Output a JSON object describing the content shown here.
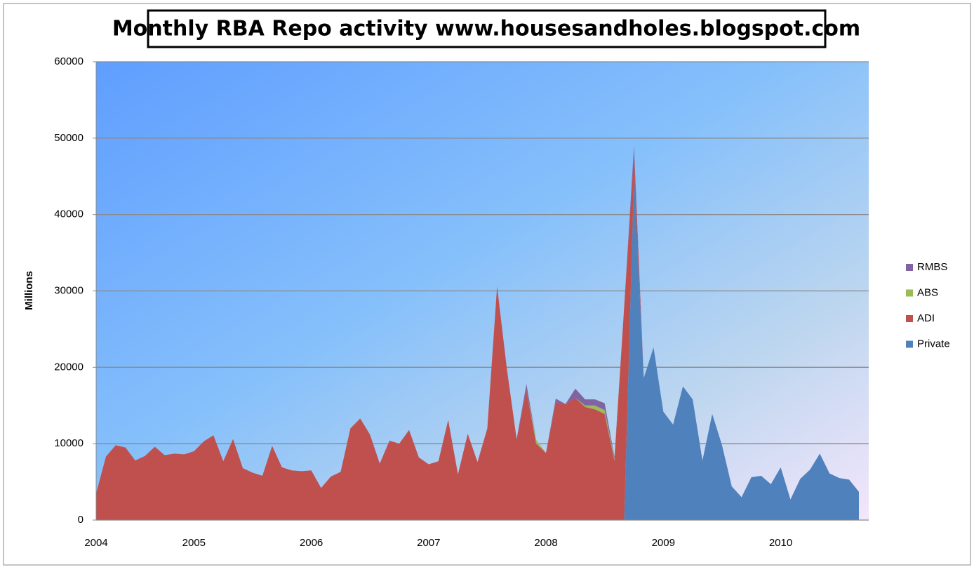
{
  "chart_data": {
    "type": "stacked_area",
    "title": "Monthly RBA Repo activity www.housesandholes.blogspot.com",
    "ylabel": "Millions",
    "categories": [
      "2004",
      null,
      null,
      null,
      null,
      null,
      null,
      null,
      null,
      null,
      "2005",
      null,
      null,
      null,
      null,
      null,
      null,
      null,
      null,
      null,
      null,
      null,
      "2006",
      null,
      null,
      null,
      null,
      null,
      null,
      null,
      null,
      null,
      null,
      null,
      "2007",
      null,
      null,
      null,
      null,
      null,
      null,
      null,
      null,
      null,
      null,
      null,
      "2008",
      null,
      null,
      null,
      null,
      null,
      null,
      null,
      null,
      null,
      null,
      null,
      "2009",
      null,
      null,
      null,
      null,
      null,
      null,
      null,
      null,
      null,
      null,
      null,
      "2010",
      null,
      null,
      null,
      null,
      null,
      null,
      null,
      null
    ],
    "series": [
      {
        "name": "Private",
        "color": "#4f81bd",
        "values": [
          0,
          0,
          0,
          0,
          0,
          0,
          0,
          0,
          0,
          0,
          0,
          0,
          0,
          0,
          0,
          0,
          0,
          0,
          0,
          0,
          0,
          0,
          0,
          0,
          0,
          0,
          0,
          0,
          0,
          0,
          0,
          0,
          0,
          0,
          0,
          0,
          0,
          0,
          0,
          0,
          0,
          0,
          0,
          0,
          0,
          0,
          0,
          0,
          0,
          0,
          0,
          0,
          0,
          0,
          0,
          45000,
          18600,
          22600,
          14200,
          12500,
          17500,
          15800,
          7800,
          13900,
          9800,
          4400,
          3000,
          5600,
          5800,
          4700,
          6900,
          2700,
          5400,
          6600,
          8700,
          6100,
          5500,
          5300,
          3700
        ]
      },
      {
        "name": "ADI",
        "color": "#c0504d",
        "values": [
          3500,
          8300,
          9800,
          9500,
          7800,
          8400,
          9600,
          8500,
          8700,
          8600,
          9000,
          10300,
          11100,
          7700,
          10600,
          6800,
          6200,
          5800,
          9700,
          6900,
          6500,
          6400,
          6500,
          4200,
          5700,
          6300,
          12000,
          13300,
          11200,
          7400,
          10400,
          10000,
          11800,
          8200,
          7300,
          7700,
          13100,
          6000,
          11300,
          7600,
          12000,
          30600,
          19800,
          10600,
          17000,
          10000,
          8800,
          15400,
          15200,
          16000,
          14800,
          14500,
          13900,
          7800,
          28000,
          3000,
          0,
          0,
          0,
          0,
          0,
          0,
          0,
          0,
          0,
          0,
          0,
          0,
          0,
          0,
          0,
          0,
          0,
          0,
          0,
          0,
          0,
          0,
          0
        ]
      },
      {
        "name": "ABS",
        "color": "#9bbb59",
        "values": [
          0,
          0,
          0,
          0,
          0,
          0,
          0,
          0,
          0,
          0,
          0,
          0,
          0,
          0,
          0,
          0,
          0,
          0,
          0,
          0,
          0,
          0,
          0,
          0,
          0,
          0,
          0,
          0,
          0,
          0,
          0,
          0,
          0,
          0,
          0,
          0,
          0,
          0,
          0,
          0,
          0,
          0,
          0,
          0,
          0,
          500,
          0,
          0,
          0,
          0,
          200,
          500,
          500,
          200,
          0,
          0,
          0,
          0,
          0,
          0,
          0,
          0,
          0,
          0,
          0,
          0,
          0,
          0,
          0,
          0,
          0,
          0,
          0,
          0,
          0,
          0,
          0,
          0,
          0
        ]
      },
      {
        "name": "RMBS",
        "color": "#8064a2",
        "values": [
          0,
          0,
          0,
          0,
          0,
          0,
          0,
          0,
          0,
          0,
          0,
          0,
          0,
          0,
          0,
          0,
          0,
          0,
          0,
          0,
          0,
          0,
          0,
          0,
          0,
          0,
          0,
          0,
          0,
          0,
          0,
          0,
          0,
          0,
          0,
          0,
          0,
          0,
          0,
          0,
          0,
          0,
          0,
          0,
          800,
          0,
          0,
          500,
          0,
          1200,
          800,
          800,
          900,
          300,
          0,
          1000,
          0,
          0,
          0,
          0,
          0,
          0,
          0,
          0,
          0,
          0,
          0,
          0,
          0,
          0,
          0,
          0,
          0,
          0,
          0,
          0,
          0,
          0,
          0
        ]
      }
    ],
    "ylim": [
      0,
      60000
    ],
    "yticks": [
      0,
      10000,
      20000,
      30000,
      40000,
      50000,
      60000
    ],
    "grid": true,
    "legend": "right"
  }
}
